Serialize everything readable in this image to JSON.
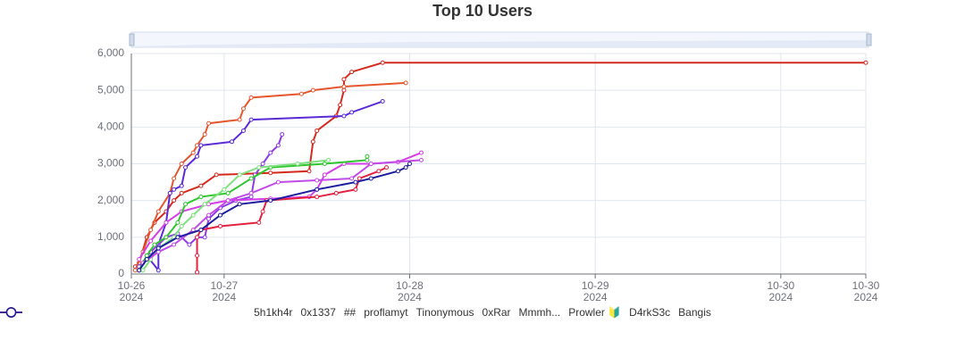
{
  "chart_data": {
    "type": "line",
    "title": "Top 10 Users",
    "xlim": [
      "2024-10-26T12:00",
      "2024-10-30T11:00"
    ],
    "xticks": [
      {
        "value": "2024-10-26T12:00",
        "label": "10-26\n2024"
      },
      {
        "value": "2024-10-27T00:00",
        "label": "10-27\n2024"
      },
      {
        "value": "2024-10-28T00:00",
        "label": "10-28\n2024"
      },
      {
        "value": "2024-10-29T00:00",
        "label": "10-29\n2024"
      },
      {
        "value": "2024-10-30T00:00",
        "label": "10-30\n2024"
      },
      {
        "value": "2024-10-30T11:00",
        "label": "10-30\n2024"
      }
    ],
    "ylim": [
      0,
      6000
    ],
    "yticks": [
      0,
      {
        "value": 1000,
        "label": "1,000"
      },
      {
        "value": 2000,
        "label": "2,000"
      },
      {
        "value": 3000,
        "label": "3,000"
      },
      {
        "value": 4000,
        "label": "4,000"
      },
      {
        "value": 5000,
        "label": "5,000"
      },
      {
        "value": 6000,
        "label": "6,000"
      }
    ],
    "grid": true,
    "series": [
      {
        "name": "5h1kh4r",
        "color": "#d42a1e",
        "x": [
          "2024-10-26T12:30",
          "2024-10-26T13:00",
          "2024-10-26T14:00",
          "2024-10-26T15:00",
          "2024-10-26T16:30",
          "2024-10-26T17:30",
          "2024-10-26T18:30",
          "2024-10-26T21:00",
          "2024-10-26T23:00",
          "2024-10-27T06:00",
          "2024-10-27T11:00",
          "2024-10-27T11:30",
          "2024-10-27T12:00",
          "2024-10-27T14:30",
          "2024-10-27T15:00",
          "2024-10-27T15:30",
          "2024-10-27T15:30",
          "2024-10-27T16:30",
          "2024-10-27T20:30",
          "2024-10-30T11:00"
        ],
        "values": [
          200,
          300,
          1000,
          1400,
          1700,
          2000,
          2200,
          2400,
          2700,
          2750,
          2800,
          3600,
          3900,
          4300,
          4600,
          5000,
          5300,
          5500,
          5750,
          5750
        ]
      },
      {
        "name": "0x1337",
        "color": "#e4572e",
        "x": [
          "2024-10-26T12:30",
          "2024-10-26T13:30",
          "2024-10-26T14:30",
          "2024-10-26T15:30",
          "2024-10-26T17:00",
          "2024-10-26T17:30",
          "2024-10-26T18:30",
          "2024-10-26T20:00",
          "2024-10-26T20:30",
          "2024-10-26T21:30",
          "2024-10-26T22:00",
          "2024-10-27T02:00",
          "2024-10-27T02:30",
          "2024-10-27T03:30",
          "2024-10-27T10:00",
          "2024-10-27T11:30",
          "2024-10-27T15:30",
          "2024-10-27T23:30"
        ],
        "values": [
          100,
          600,
          1200,
          1700,
          2200,
          2600,
          3000,
          3300,
          3500,
          3800,
          4100,
          4200,
          4500,
          4800,
          4900,
          5000,
          5100,
          5200
        ]
      },
      {
        "name": "##",
        "color": "#5a2bd6",
        "x": [
          "2024-10-26T13:00",
          "2024-10-26T14:00",
          "2024-10-26T15:30",
          "2024-10-26T15:30",
          "2024-10-26T16:30",
          "2024-10-26T17:00",
          "2024-10-26T17:30",
          "2024-10-26T18:30",
          "2024-10-26T19:00",
          "2024-10-26T20:30",
          "2024-10-26T21:00",
          "2024-10-27T01:00",
          "2024-10-27T02:30",
          "2024-10-27T03:30",
          "2024-10-27T15:30",
          "2024-10-27T16:30",
          "2024-10-27T20:30"
        ],
        "values": [
          100,
          500,
          100,
          800,
          1400,
          2200,
          2300,
          2400,
          2900,
          3200,
          3500,
          3600,
          3900,
          4200,
          4300,
          4400,
          4700
        ]
      },
      {
        "name": "proflamyt",
        "color": "#8e3be6",
        "x": [
          "2024-10-26T13:00",
          "2024-10-26T14:30",
          "2024-10-26T16:30",
          "2024-10-26T18:00",
          "2024-10-26T19:30",
          "2024-10-26T20:30",
          "2024-10-26T21:30",
          "2024-10-26T22:00",
          "2024-10-26T23:30",
          "2024-10-27T01:30",
          "2024-10-27T03:30",
          "2024-10-27T04:00",
          "2024-10-27T05:00",
          "2024-10-27T06:00",
          "2024-10-27T07:00",
          "2024-10-27T07:30"
        ],
        "values": [
          200,
          600,
          1000,
          1100,
          800,
          1000,
          1000,
          1500,
          1800,
          2000,
          2100,
          2700,
          3000,
          3300,
          3500,
          3800
        ]
      },
      {
        "name": "Tinonymous",
        "color": "#d63ee8",
        "x": [
          "2024-10-26T13:00",
          "2024-10-26T14:30",
          "2024-10-26T16:30",
          "2024-10-26T18:30",
          "2024-10-26T22:00",
          "2024-10-27T00:30",
          "2024-10-27T06:00",
          "2024-10-27T11:00",
          "2024-10-27T12:00",
          "2024-10-27T13:00",
          "2024-10-27T15:30",
          "2024-10-27T19:00",
          "2024-10-27T22:30",
          "2024-10-28T01:30"
        ],
        "values": [
          400,
          900,
          1400,
          1700,
          1900,
          2000,
          2050,
          2100,
          2300,
          2700,
          3000,
          3000,
          3050,
          3300
        ]
      },
      {
        "name": "0xRar",
        "color": "#2fc62f",
        "x": [
          "2024-10-26T13:00",
          "2024-10-26T14:00",
          "2024-10-26T15:00",
          "2024-10-26T16:30",
          "2024-10-26T18:00",
          "2024-10-26T19:00",
          "2024-10-26T21:00",
          "2024-10-27T00:30",
          "2024-10-27T03:30",
          "2024-10-27T06:00",
          "2024-10-27T13:00",
          "2024-10-27T18:30",
          "2024-10-27T18:30"
        ],
        "values": [
          100,
          500,
          800,
          1000,
          1400,
          1900,
          2100,
          2200,
          2600,
          2900,
          3000,
          3100,
          3200
        ]
      },
      {
        "name": "Mmmh...",
        "color": "#7ee07e",
        "x": [
          "2024-10-26T13:30",
          "2024-10-26T14:30",
          "2024-10-26T15:30",
          "2024-10-26T17:30",
          "2024-10-26T18:30",
          "2024-10-26T20:00",
          "2024-10-26T21:30",
          "2024-10-27T00:00",
          "2024-10-27T02:00",
          "2024-10-27T04:30",
          "2024-10-27T09:30",
          "2024-10-27T13:30"
        ],
        "values": [
          100,
          400,
          700,
          1000,
          1300,
          1600,
          1900,
          2300,
          2700,
          2900,
          3000,
          3100
        ]
      },
      {
        "name": "Prowler 🔰",
        "color": "#c24be6",
        "x": [
          "2024-10-26T13:30",
          "2024-10-26T15:30",
          "2024-10-26T17:30",
          "2024-10-26T20:00",
          "2024-10-26T22:00",
          "2024-10-27T00:30",
          "2024-10-27T03:30",
          "2024-10-27T07:00",
          "2024-10-27T12:00",
          "2024-10-27T16:30",
          "2024-10-27T19:00",
          "2024-10-28T01:30"
        ],
        "values": [
          300,
          600,
          800,
          1200,
          1600,
          2000,
          2200,
          2500,
          2550,
          2600,
          3000,
          3100
        ]
      },
      {
        "name": "D4rkS3c",
        "color": "#e3213f",
        "x": [
          "2024-10-26T20:30",
          "2024-10-26T20:30",
          "2024-10-26T20:30",
          "2024-10-26T21:00",
          "2024-10-26T23:30",
          "2024-10-27T04:30",
          "2024-10-27T05:00",
          "2024-10-27T05:30",
          "2024-10-27T12:00",
          "2024-10-27T14:30",
          "2024-10-27T17:00",
          "2024-10-27T17:30",
          "2024-10-27T20:00",
          "2024-10-27T21:00"
        ],
        "values": [
          50,
          500,
          1000,
          1200,
          1300,
          1400,
          1700,
          2000,
          2100,
          2200,
          2300,
          2600,
          2800,
          2900
        ]
      },
      {
        "name": "Bangis",
        "color": "#1c1c9c",
        "x": [
          "2024-10-26T13:00",
          "2024-10-26T14:00",
          "2024-10-26T15:30",
          "2024-10-26T18:00",
          "2024-10-26T21:00",
          "2024-10-26T23:30",
          "2024-10-27T02:00",
          "2024-10-27T06:00",
          "2024-10-27T12:00",
          "2024-10-27T17:00",
          "2024-10-27T19:00",
          "2024-10-27T22:30",
          "2024-10-27T23:30",
          "2024-10-28T00:00"
        ],
        "values": [
          100,
          400,
          700,
          1000,
          1200,
          1600,
          1900,
          2000,
          2300,
          2500,
          2600,
          2800,
          2900,
          3000
        ]
      }
    ]
  }
}
